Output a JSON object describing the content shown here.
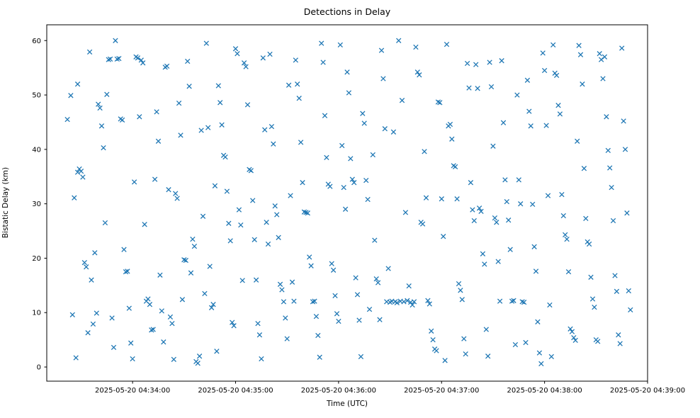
{
  "figure": {
    "title": "Detections in Delay",
    "xlabel": "Time (UTC)",
    "ylabel": "Bistatic Delay (km)"
  },
  "chart_data": {
    "type": "scatter",
    "title": "Detections in Delay",
    "xlabel": "Time (UTC)",
    "ylabel": "Bistatic Delay (km)",
    "marker": "x",
    "marker_color": "#1f77b4",
    "grid": false,
    "legend": "none",
    "x_unit": "seconds after 2025-05-20 04:33:00 UTC",
    "xlim": [
      10,
      360
    ],
    "ylim": [
      -2.6,
      62.9
    ],
    "y_ticks": [
      0,
      10,
      20,
      30,
      40,
      50,
      60
    ],
    "x_ticks": [
      {
        "t": 60,
        "label": "2025-05-20 04:34:00"
      },
      {
        "t": 120,
        "label": "2025-05-20 04:35:00"
      },
      {
        "t": 180,
        "label": "2025-05-20 04:36:00"
      },
      {
        "t": 240,
        "label": "2025-05-20 04:37:00"
      },
      {
        "t": 300,
        "label": "2025-05-20 04:38:00"
      },
      {
        "t": 360,
        "label": "2025-05-20 04:39:00"
      }
    ],
    "points": [
      [
        22,
        45.5
      ],
      [
        24,
        49.9
      ],
      [
        25,
        9.6
      ],
      [
        26,
        31.1
      ],
      [
        27,
        1.7
      ],
      [
        28,
        35.8
      ],
      [
        28,
        52.0
      ],
      [
        29,
        36.4
      ],
      [
        30,
        36.0
      ],
      [
        31,
        34.9
      ],
      [
        32,
        19.2
      ],
      [
        33,
        18.4
      ],
      [
        34,
        6.3
      ],
      [
        35,
        57.9
      ],
      [
        36,
        16.0
      ],
      [
        37,
        7.9
      ],
      [
        38,
        21.0
      ],
      [
        39,
        9.9
      ],
      [
        40,
        48.3
      ],
      [
        41,
        47.6
      ],
      [
        42,
        44.3
      ],
      [
        43,
        40.3
      ],
      [
        44,
        26.5
      ],
      [
        45,
        50.1
      ],
      [
        46,
        56.5
      ],
      [
        47,
        56.6
      ],
      [
        48,
        9.0
      ],
      [
        49,
        3.6
      ],
      [
        50,
        60.0
      ],
      [
        51,
        56.6
      ],
      [
        52,
        56.7
      ],
      [
        53,
        45.6
      ],
      [
        54,
        45.4
      ],
      [
        55,
        21.6
      ],
      [
        56,
        17.5
      ],
      [
        57,
        17.6
      ],
      [
        58,
        10.8
      ],
      [
        59,
        4.4
      ],
      [
        60,
        1.5
      ],
      [
        61,
        34.0
      ],
      [
        62,
        57.0
      ],
      [
        63,
        56.8
      ],
      [
        64,
        46.0
      ],
      [
        65,
        56.4
      ],
      [
        66,
        55.9
      ],
      [
        67,
        26.2
      ],
      [
        68,
        12.1
      ],
      [
        69,
        12.5
      ],
      [
        70,
        11.5
      ],
      [
        71,
        6.8
      ],
      [
        72,
        6.9
      ],
      [
        73,
        34.5
      ],
      [
        74,
        46.9
      ],
      [
        75,
        41.5
      ],
      [
        76,
        16.9
      ],
      [
        77,
        10.3
      ],
      [
        78,
        4.6
      ],
      [
        79,
        55.1
      ],
      [
        80,
        55.3
      ],
      [
        81,
        32.6
      ],
      [
        82,
        9.2
      ],
      [
        83,
        8.0
      ],
      [
        84,
        1.4
      ],
      [
        85,
        31.9
      ],
      [
        86,
        31.0
      ],
      [
        87,
        48.5
      ],
      [
        88,
        42.6
      ],
      [
        89,
        12.4
      ],
      [
        90,
        19.7
      ],
      [
        91,
        19.6
      ],
      [
        92,
        56.2
      ],
      [
        93,
        51.6
      ],
      [
        94,
        17.3
      ],
      [
        95,
        23.5
      ],
      [
        96,
        22.2
      ],
      [
        97,
        1.0
      ],
      [
        98,
        0.7
      ],
      [
        99,
        2.0
      ],
      [
        100,
        43.5
      ],
      [
        101,
        27.7
      ],
      [
        102,
        13.5
      ],
      [
        103,
        59.5
      ],
      [
        104,
        44.0
      ],
      [
        105,
        18.5
      ],
      [
        106,
        10.9
      ],
      [
        107,
        11.5
      ],
      [
        108,
        33.3
      ],
      [
        109,
        2.9
      ],
      [
        110,
        51.7
      ],
      [
        111,
        48.6
      ],
      [
        112,
        44.5
      ],
      [
        113,
        38.9
      ],
      [
        114,
        38.6
      ],
      [
        115,
        32.3
      ],
      [
        116,
        26.4
      ],
      [
        117,
        23.2
      ],
      [
        118,
        8.2
      ],
      [
        119,
        7.6
      ],
      [
        120,
        58.5
      ],
      [
        121,
        57.6
      ],
      [
        122,
        28.9
      ],
      [
        123,
        26.1
      ],
      [
        124,
        15.9
      ],
      [
        125,
        55.9
      ],
      [
        126,
        55.2
      ],
      [
        127,
        48.2
      ],
      [
        128,
        36.3
      ],
      [
        129,
        36.1
      ],
      [
        130,
        30.6
      ],
      [
        131,
        23.4
      ],
      [
        132,
        16.0
      ],
      [
        133,
        8.0
      ],
      [
        134,
        5.9
      ],
      [
        135,
        1.5
      ],
      [
        136,
        56.8
      ],
      [
        137,
        43.6
      ],
      [
        138,
        26.6
      ],
      [
        139,
        22.6
      ],
      [
        140,
        57.5
      ],
      [
        141,
        44.2
      ],
      [
        142,
        41.0
      ],
      [
        143,
        29.6
      ],
      [
        144,
        28.0
      ],
      [
        145,
        23.8
      ],
      [
        146,
        15.2
      ],
      [
        147,
        14.2
      ],
      [
        148,
        12.0
      ],
      [
        149,
        9.0
      ],
      [
        150,
        5.2
      ],
      [
        151,
        51.8
      ],
      [
        152,
        31.5
      ],
      [
        153,
        15.6
      ],
      [
        154,
        12.1
      ],
      [
        155,
        56.4
      ],
      [
        156,
        52.0
      ],
      [
        157,
        49.4
      ],
      [
        158,
        41.3
      ],
      [
        159,
        33.9
      ],
      [
        160,
        28.5
      ],
      [
        161,
        28.4
      ],
      [
        162,
        28.3
      ],
      [
        163,
        20.2
      ],
      [
        164,
        18.6
      ],
      [
        165,
        12.0
      ],
      [
        166,
        12.1
      ],
      [
        167,
        9.3
      ],
      [
        168,
        5.8
      ],
      [
        169,
        1.8
      ],
      [
        170,
        59.5
      ],
      [
        171,
        56.0
      ],
      [
        172,
        46.2
      ],
      [
        173,
        38.5
      ],
      [
        174,
        33.6
      ],
      [
        175,
        33.2
      ],
      [
        176,
        19.0
      ],
      [
        177,
        17.8
      ],
      [
        178,
        13.1
      ],
      [
        179,
        9.8
      ],
      [
        180,
        8.4
      ],
      [
        181,
        59.2
      ],
      [
        182,
        40.7
      ],
      [
        183,
        33.0
      ],
      [
        184,
        29.0
      ],
      [
        185,
        54.2
      ],
      [
        186,
        50.4
      ],
      [
        187,
        38.3
      ],
      [
        188,
        34.5
      ],
      [
        189,
        33.9
      ],
      [
        190,
        16.4
      ],
      [
        191,
        13.3
      ],
      [
        192,
        8.6
      ],
      [
        193,
        1.9
      ],
      [
        194,
        46.6
      ],
      [
        195,
        44.8
      ],
      [
        196,
        34.3
      ],
      [
        197,
        30.8
      ],
      [
        198,
        10.6
      ],
      [
        200,
        39.0
      ],
      [
        201,
        23.3
      ],
      [
        202,
        16.2
      ],
      [
        203,
        15.5
      ],
      [
        204,
        8.7
      ],
      [
        205,
        58.2
      ],
      [
        206,
        53.0
      ],
      [
        207,
        43.8
      ],
      [
        208,
        12.0
      ],
      [
        209,
        18.1
      ],
      [
        210,
        11.9
      ],
      [
        211,
        12.1
      ],
      [
        212,
        43.2
      ],
      [
        213,
        12.0
      ],
      [
        214,
        11.8
      ],
      [
        215,
        60.0
      ],
      [
        216,
        12.1
      ],
      [
        217,
        49.0
      ],
      [
        218,
        12.0
      ],
      [
        219,
        28.4
      ],
      [
        220,
        12.2
      ],
      [
        221,
        14.9
      ],
      [
        222,
        11.9
      ],
      [
        223,
        11.4
      ],
      [
        224,
        12.0
      ],
      [
        225,
        58.8
      ],
      [
        226,
        54.2
      ],
      [
        227,
        53.7
      ],
      [
        228,
        26.6
      ],
      [
        229,
        26.3
      ],
      [
        230,
        39.6
      ],
      [
        231,
        31.1
      ],
      [
        232,
        12.2
      ],
      [
        233,
        11.6
      ],
      [
        234,
        6.6
      ],
      [
        235,
        5.0
      ],
      [
        236,
        3.3
      ],
      [
        237,
        3.0
      ],
      [
        238,
        48.7
      ],
      [
        239,
        48.6
      ],
      [
        240,
        30.9
      ],
      [
        241,
        24.0
      ],
      [
        242,
        1.2
      ],
      [
        243,
        59.3
      ],
      [
        244,
        44.3
      ],
      [
        245,
        44.6
      ],
      [
        246,
        41.9
      ],
      [
        247,
        37.0
      ],
      [
        248,
        36.8
      ],
      [
        249,
        30.9
      ],
      [
        250,
        15.3
      ],
      [
        251,
        14.1
      ],
      [
        252,
        12.4
      ],
      [
        253,
        5.2
      ],
      [
        254,
        2.4
      ],
      [
        255,
        55.8
      ],
      [
        256,
        51.3
      ],
      [
        257,
        33.9
      ],
      [
        258,
        28.9
      ],
      [
        259,
        26.9
      ],
      [
        260,
        55.6
      ],
      [
        261,
        51.2
      ],
      [
        262,
        29.2
      ],
      [
        263,
        28.6
      ],
      [
        264,
        20.8
      ],
      [
        265,
        18.9
      ],
      [
        266,
        6.9
      ],
      [
        267,
        2.0
      ],
      [
        268,
        56.0
      ],
      [
        269,
        51.5
      ],
      [
        270,
        40.6
      ],
      [
        271,
        27.4
      ],
      [
        272,
        26.6
      ],
      [
        273,
        19.4
      ],
      [
        274,
        12.1
      ],
      [
        275,
        56.3
      ],
      [
        276,
        44.9
      ],
      [
        277,
        34.4
      ],
      [
        278,
        30.4
      ],
      [
        279,
        27.0
      ],
      [
        280,
        21.6
      ],
      [
        281,
        12.1
      ],
      [
        282,
        12.2
      ],
      [
        283,
        4.1
      ],
      [
        284,
        50.0
      ],
      [
        285,
        34.4
      ],
      [
        286,
        30.0
      ],
      [
        287,
        12.0
      ],
      [
        288,
        11.9
      ],
      [
        289,
        4.5
      ],
      [
        290,
        52.7
      ],
      [
        291,
        47.0
      ],
      [
        292,
        44.3
      ],
      [
        293,
        29.9
      ],
      [
        294,
        22.1
      ],
      [
        295,
        17.6
      ],
      [
        296,
        8.3
      ],
      [
        297,
        2.6
      ],
      [
        298,
        0.6
      ],
      [
        299,
        57.7
      ],
      [
        300,
        54.5
      ],
      [
        301,
        44.4
      ],
      [
        302,
        31.5
      ],
      [
        303,
        11.4
      ],
      [
        304,
        1.9
      ],
      [
        305,
        59.2
      ],
      [
        306,
        54.0
      ],
      [
        307,
        53.6
      ],
      [
        308,
        48.1
      ],
      [
        309,
        46.5
      ],
      [
        310,
        31.7
      ],
      [
        311,
        27.8
      ],
      [
        312,
        24.3
      ],
      [
        313,
        23.5
      ],
      [
        314,
        17.5
      ],
      [
        315,
        7.0
      ],
      [
        316,
        6.5
      ],
      [
        317,
        5.4
      ],
      [
        318,
        4.9
      ],
      [
        319,
        41.5
      ],
      [
        320,
        59.1
      ],
      [
        321,
        57.4
      ],
      [
        322,
        52.0
      ],
      [
        323,
        36.5
      ],
      [
        324,
        27.3
      ],
      [
        325,
        23.0
      ],
      [
        326,
        22.6
      ],
      [
        327,
        16.5
      ],
      [
        328,
        12.5
      ],
      [
        329,
        11.0
      ],
      [
        330,
        5.0
      ],
      [
        331,
        4.7
      ],
      [
        332,
        57.6
      ],
      [
        333,
        56.5
      ],
      [
        334,
        53.0
      ],
      [
        335,
        57.0
      ],
      [
        336,
        46.0
      ],
      [
        337,
        39.8
      ],
      [
        338,
        36.6
      ],
      [
        339,
        33.0
      ],
      [
        340,
        26.9
      ],
      [
        341,
        16.8
      ],
      [
        342,
        13.9
      ],
      [
        343,
        5.9
      ],
      [
        344,
        4.3
      ],
      [
        345,
        58.6
      ],
      [
        346,
        45.2
      ],
      [
        347,
        40.0
      ],
      [
        348,
        28.3
      ],
      [
        349,
        14.0
      ],
      [
        350,
        10.5
      ]
    ]
  }
}
